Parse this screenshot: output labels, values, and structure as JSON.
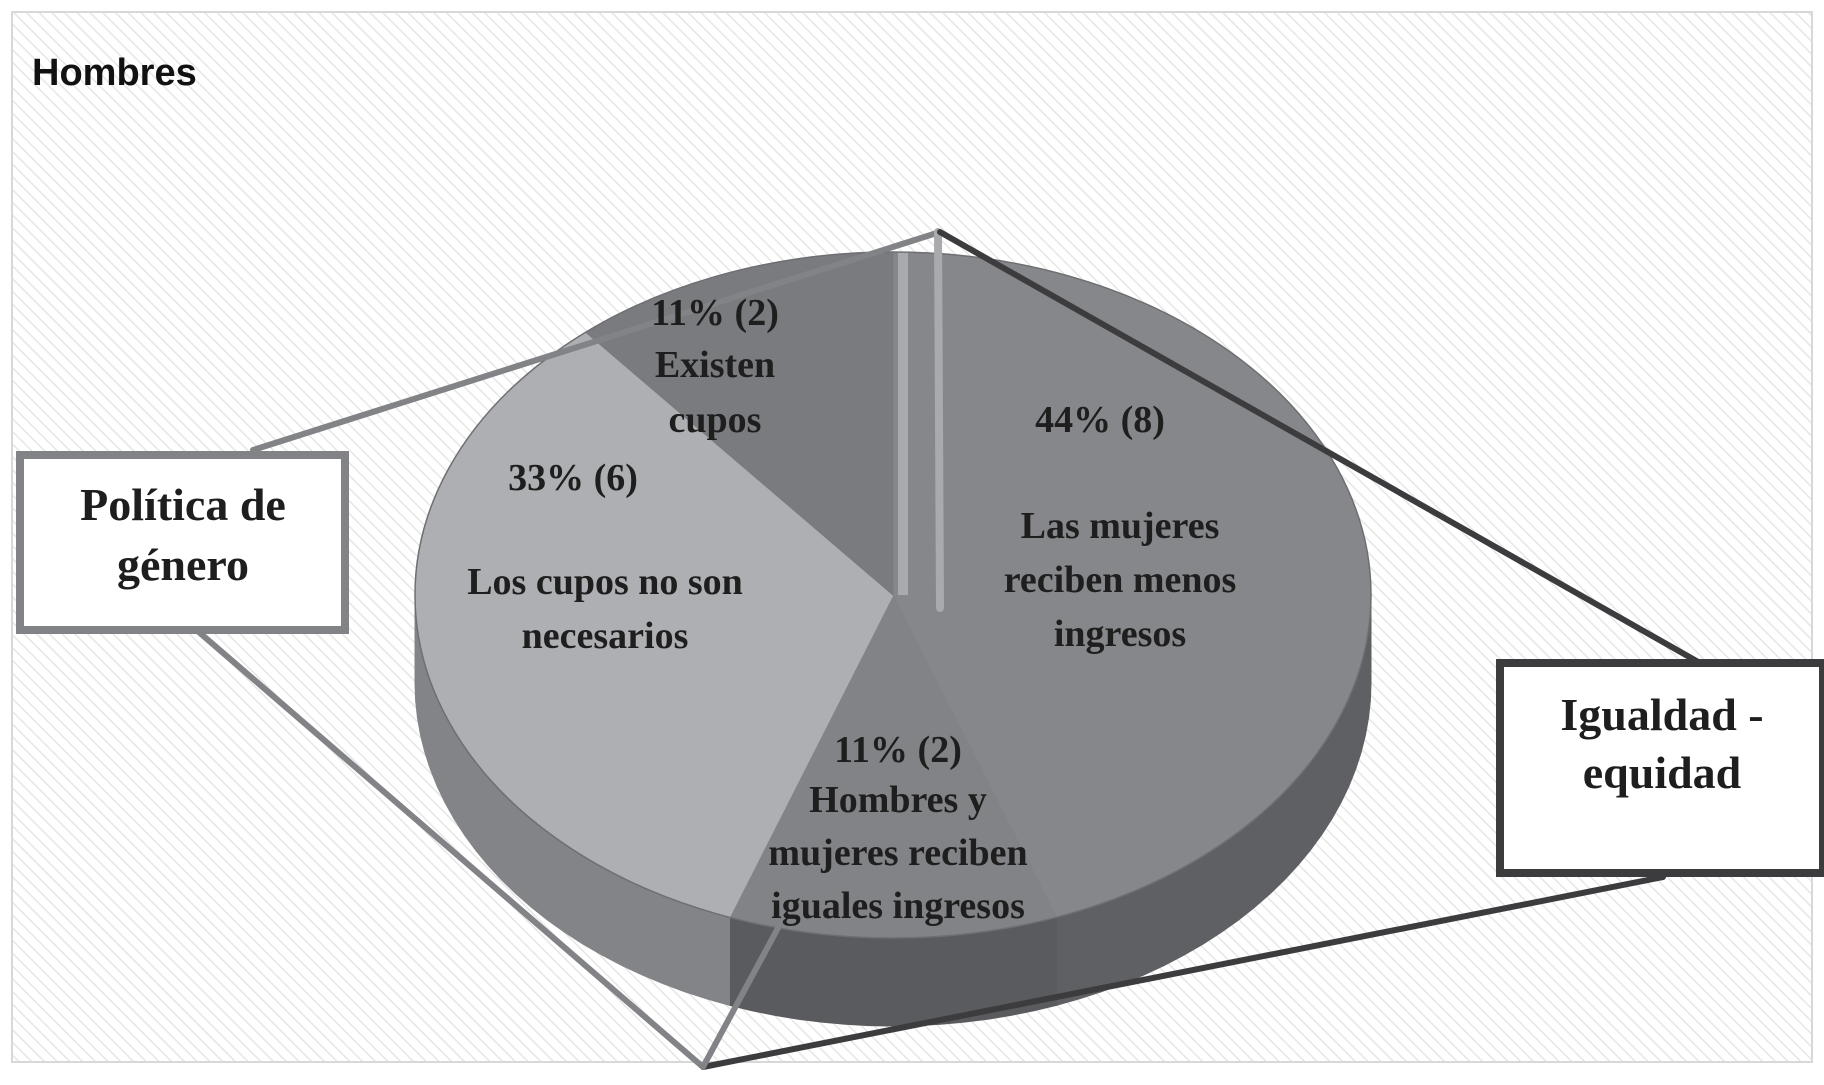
{
  "chart_data": {
    "type": "pie",
    "title": "Hombres",
    "three_d": true,
    "slices": [
      {
        "percent_label": "44% (8)",
        "label_lines": [
          "Las mujeres",
          "reciben menos",
          "ingresos"
        ],
        "value": 44,
        "count": 8,
        "color": "#86878a",
        "side_color": "#5f6063"
      },
      {
        "percent_label": "11%  (2)",
        "label_lines": [
          "Hombres y",
          "mujeres reciben",
          "iguales ingresos"
        ],
        "value": 11,
        "count": 2,
        "color": "#828386",
        "side_color": "#5a5b5e"
      },
      {
        "percent_label": "33%  (6)",
        "label_lines": [
          "Los cupos no son",
          "necesarios"
        ],
        "value": 33,
        "count": 6,
        "color": "#aeafb2",
        "side_color": "#838487"
      },
      {
        "percent_label": "11%  (2)",
        "label_lines": [
          "Existen",
          "cupos"
        ],
        "value": 11,
        "count": 2,
        "color": "#7a7b7e",
        "side_color": "#55565a"
      }
    ],
    "groups": [
      {
        "label_lines": [
          "Política de",
          "género"
        ],
        "color": "#828386"
      },
      {
        "label_lines": [
          "Igualdad -",
          "equidad"
        ],
        "color": "#3c3c3e"
      }
    ],
    "legend": "none",
    "background_pattern": "diagonal-hatch"
  }
}
